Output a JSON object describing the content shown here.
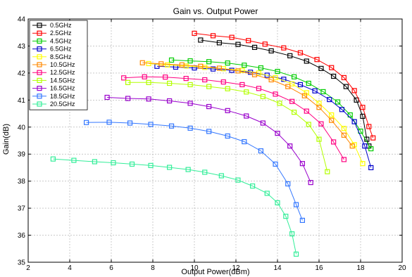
{
  "chart_data": {
    "type": "line",
    "title": "Gain vs. Output Power",
    "xlabel": "Output Power(dBm)",
    "ylabel": "Gain(dB)",
    "xlim": [
      2,
      20
    ],
    "ylim": [
      35,
      44
    ],
    "xticks": [
      2,
      4,
      6,
      8,
      10,
      12,
      14,
      16,
      18,
      20
    ],
    "yticks": [
      35,
      36,
      37,
      38,
      39,
      40,
      41,
      42,
      43,
      44
    ],
    "grid": true,
    "legend_position": "top-left",
    "marker": "open-square",
    "series": [
      {
        "name": "0.5GHz",
        "color": "#000000",
        "x": [
          10.3,
          11.2,
          12.1,
          12.9,
          13.7,
          14.6,
          15.4,
          16.1,
          16.7,
          17.3,
          17.8,
          18.1,
          18.3,
          18.4
        ],
        "y": [
          43.22,
          43.12,
          43.06,
          42.95,
          42.82,
          42.64,
          42.44,
          42.17,
          41.88,
          41.5,
          41.0,
          40.4,
          39.55,
          39.3
        ]
      },
      {
        "name": "2.5GHz",
        "color": "#ff0000",
        "x": [
          10.0,
          10.9,
          11.8,
          12.6,
          13.4,
          14.3,
          15.1,
          15.9,
          16.6,
          17.2,
          17.7,
          18.1,
          18.4,
          18.6
        ],
        "y": [
          43.47,
          43.38,
          43.32,
          43.2,
          43.07,
          42.93,
          42.75,
          42.5,
          42.2,
          41.83,
          41.35,
          40.73,
          40.02,
          39.6
        ]
      },
      {
        "name": "4.5GHz",
        "color": "#00cc00",
        "x": [
          8.9,
          9.8,
          10.7,
          11.6,
          12.4,
          13.2,
          14.0,
          14.8,
          15.5,
          16.2,
          16.9,
          17.5,
          18.0,
          18.5
        ],
        "y": [
          42.48,
          42.45,
          42.42,
          42.37,
          42.29,
          42.19,
          42.06,
          41.86,
          41.62,
          41.31,
          40.93,
          40.45,
          39.85,
          39.2
        ]
      },
      {
        "name": "6.5GHz",
        "color": "#0000cc",
        "x": [
          8.2,
          9.1,
          10.0,
          10.9,
          11.8,
          12.7,
          13.5,
          14.3,
          15.1,
          15.8,
          16.5,
          17.1,
          17.7,
          18.2,
          18.5
        ],
        "y": [
          42.25,
          42.22,
          42.19,
          42.15,
          42.1,
          42.03,
          41.92,
          41.77,
          41.57,
          41.34,
          41.02,
          40.65,
          40.2,
          39.3,
          38.5
        ]
      },
      {
        "name": "8.5GHz",
        "color": "#ffff00",
        "x": [
          7.8,
          8.7,
          9.6,
          10.5,
          11.4,
          12.3,
          13.1,
          13.9,
          14.7,
          15.4,
          16.0,
          16.6,
          17.2,
          17.7,
          18.1
        ],
        "y": [
          42.35,
          42.3,
          42.26,
          42.21,
          42.16,
          42.1,
          42.0,
          41.83,
          41.6,
          41.27,
          40.88,
          40.45,
          39.95,
          39.35,
          38.65
        ]
      },
      {
        "name": "10.5GHz",
        "color": "#ff8800",
        "x": [
          7.5,
          8.4,
          9.4,
          10.3,
          11.2,
          12.1,
          12.9,
          13.7,
          14.5,
          15.3,
          16.0,
          16.6,
          17.2,
          17.6
        ],
        "y": [
          42.38,
          42.34,
          42.3,
          42.25,
          42.18,
          42.08,
          41.94,
          41.75,
          41.5,
          41.16,
          40.73,
          40.25,
          39.7,
          39.3
        ]
      },
      {
        "name": "12.5GHz",
        "color": "#ff0080",
        "x": [
          6.6,
          7.6,
          8.6,
          9.6,
          10.5,
          11.4,
          12.3,
          13.1,
          13.9,
          14.7,
          15.4,
          16.1,
          16.7,
          17.2
        ],
        "y": [
          41.82,
          41.86,
          41.85,
          41.8,
          41.75,
          41.67,
          41.57,
          41.43,
          41.22,
          40.95,
          40.59,
          40.12,
          39.45,
          38.8
        ]
      },
      {
        "name": "14.5GHz",
        "color": "#b3ff00",
        "x": [
          6.8,
          7.8,
          8.8,
          9.8,
          10.7,
          11.6,
          12.5,
          13.3,
          14.1,
          14.8,
          15.5,
          16.0,
          16.4
        ],
        "y": [
          41.65,
          41.65,
          41.62,
          41.57,
          41.5,
          41.42,
          41.3,
          41.13,
          40.88,
          40.55,
          40.1,
          39.55,
          38.35
        ]
      },
      {
        "name": "16.5GHz",
        "color": "#9900cc",
        "x": [
          5.8,
          6.8,
          7.8,
          8.8,
          9.8,
          10.7,
          11.6,
          12.5,
          13.3,
          14.0,
          14.6,
          15.2,
          15.6
        ],
        "y": [
          41.1,
          41.06,
          41.04,
          40.97,
          40.88,
          40.76,
          40.61,
          40.41,
          40.15,
          39.77,
          39.3,
          38.65,
          37.95
        ]
      },
      {
        "name": "18.5GHz",
        "color": "#3377ff",
        "x": [
          4.8,
          5.9,
          6.9,
          7.9,
          8.9,
          9.8,
          10.7,
          11.6,
          12.4,
          13.2,
          13.9,
          14.5,
          14.9,
          15.2
        ],
        "y": [
          40.17,
          40.18,
          40.15,
          40.1,
          40.04,
          39.96,
          39.84,
          39.67,
          39.46,
          39.12,
          38.63,
          37.9,
          37.13,
          36.55
        ]
      },
      {
        "name": "20.5GHz",
        "color": "#33ee99",
        "x": [
          3.2,
          4.2,
          5.2,
          6.1,
          7.0,
          7.9,
          8.8,
          9.7,
          10.5,
          11.3,
          12.1,
          12.8,
          13.5,
          14.0,
          14.4,
          14.7,
          14.9
        ],
        "y": [
          38.82,
          38.77,
          38.72,
          38.68,
          38.63,
          38.58,
          38.51,
          38.43,
          38.33,
          38.2,
          38.04,
          37.82,
          37.55,
          37.2,
          36.7,
          36.05,
          35.3
        ]
      }
    ]
  }
}
